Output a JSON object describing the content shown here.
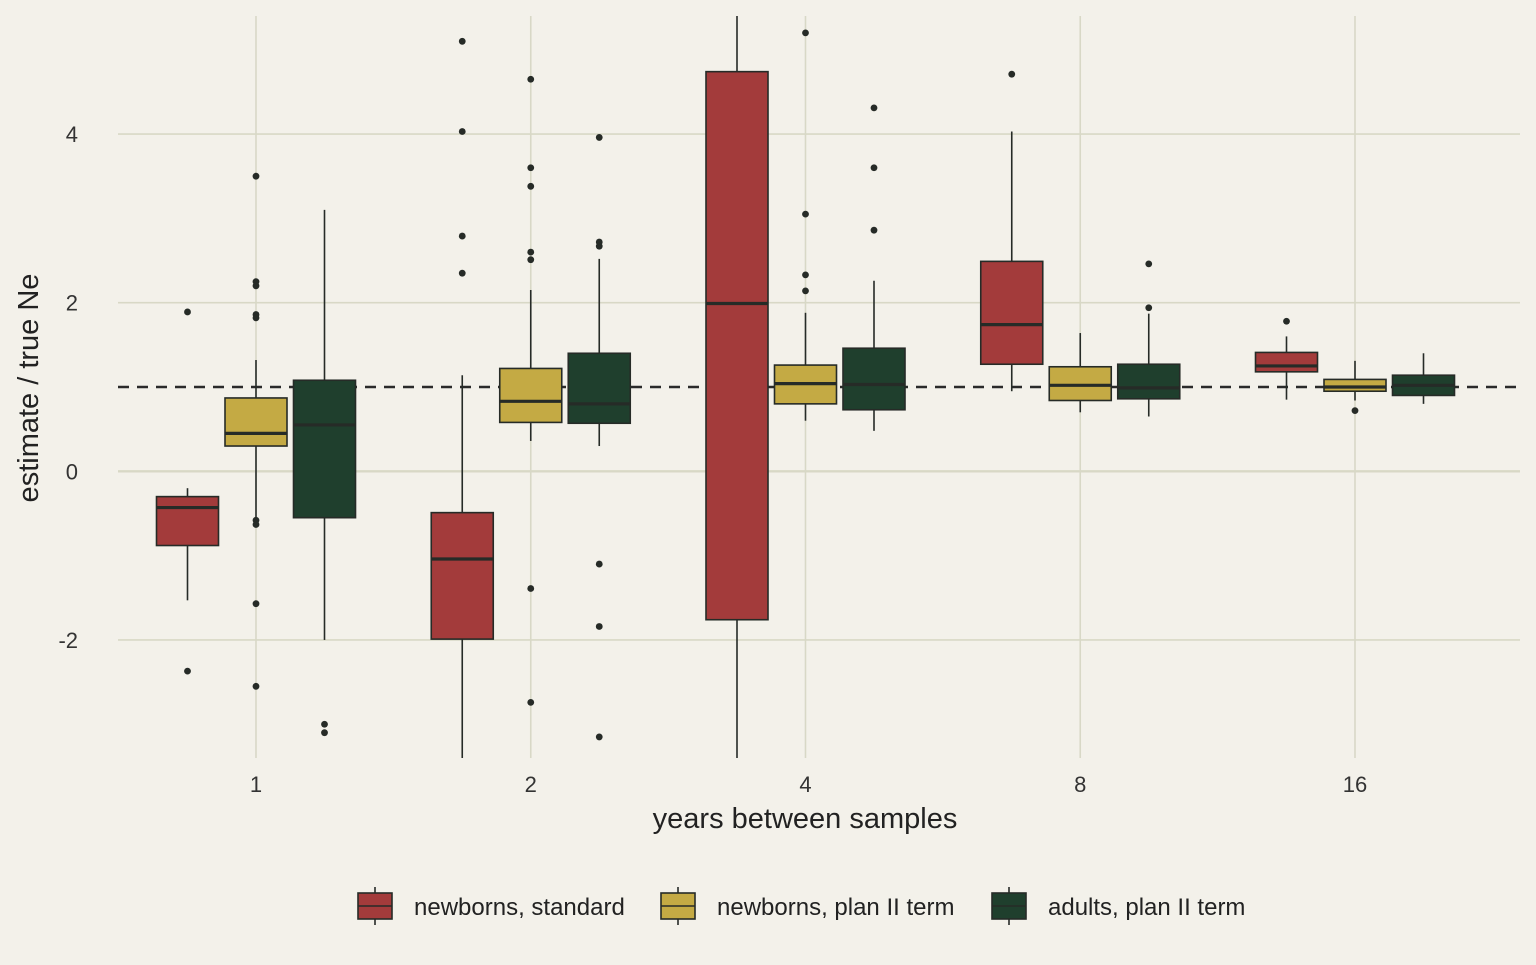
{
  "chart_data": {
    "type": "boxplot",
    "title": "",
    "xlabel": "years between samples",
    "ylabel": "estimate / true Ne",
    "categories": [
      "1",
      "2",
      "4",
      "8",
      "16"
    ],
    "ylim": [
      -3.4,
      5.4
    ],
    "yticks": [
      -2,
      0,
      2,
      4
    ],
    "ytick_labels": [
      "-2",
      "0",
      "2",
      "4"
    ],
    "reference_line": {
      "y": 1,
      "style": "dashed"
    },
    "grid": true,
    "legend_position": "bottom",
    "series": [
      {
        "name": "newborns, standard",
        "color": "#a33b3b",
        "boxes": [
          {
            "q1": -0.88,
            "median": -0.43,
            "q3": -0.3,
            "whisker_low": -1.53,
            "whisker_high": -0.2,
            "outliers": [
              1.89,
              -2.37
            ]
          },
          {
            "q1": -1.99,
            "median": -1.04,
            "q3": -0.49,
            "whisker_low": -3.4,
            "whisker_high": 1.14,
            "outliers": [
              5.1,
              4.03,
              2.79,
              2.35
            ]
          },
          {
            "q1": -1.76,
            "median": 1.99,
            "q3": 4.74,
            "whisker_low": -3.4,
            "whisker_high": 5.4,
            "outliers": []
          },
          {
            "q1": 1.27,
            "median": 1.74,
            "q3": 2.49,
            "whisker_low": 0.95,
            "whisker_high": 4.03,
            "outliers": [
              4.71
            ]
          },
          {
            "q1": 1.18,
            "median": 1.25,
            "q3": 1.41,
            "whisker_low": 0.85,
            "whisker_high": 1.6,
            "outliers": [
              1.78
            ]
          }
        ]
      },
      {
        "name": "newborns, plan II term",
        "color": "#c4aa44",
        "boxes": [
          {
            "q1": 0.3,
            "median": 0.45,
            "q3": 0.87,
            "whisker_low": -0.55,
            "whisker_high": 1.32,
            "outliers": [
              3.5,
              2.25,
              2.2,
              1.86,
              1.82,
              -0.58,
              -0.63,
              -1.57,
              -2.55
            ]
          },
          {
            "q1": 0.58,
            "median": 0.83,
            "q3": 1.22,
            "whisker_low": 0.36,
            "whisker_high": 2.15,
            "outliers": [
              4.65,
              3.6,
              3.38,
              2.6,
              2.51,
              -1.39,
              -2.74
            ]
          },
          {
            "q1": 0.8,
            "median": 1.04,
            "q3": 1.26,
            "whisker_low": 0.6,
            "whisker_high": 1.88,
            "outliers": [
              5.2,
              3.05,
              2.33,
              2.14
            ]
          },
          {
            "q1": 0.84,
            "median": 1.02,
            "q3": 1.24,
            "whisker_low": 0.7,
            "whisker_high": 1.64,
            "outliers": []
          },
          {
            "q1": 0.95,
            "median": 1.0,
            "q3": 1.09,
            "whisker_low": 0.84,
            "whisker_high": 1.31,
            "outliers": [
              0.72
            ]
          }
        ]
      },
      {
        "name": "adults, plan II term",
        "color": "#1f3f2d",
        "boxes": [
          {
            "q1": -0.55,
            "median": 0.55,
            "q3": 1.08,
            "whisker_low": -2.0,
            "whisker_high": 3.1,
            "outliers": [
              -3.0,
              -3.1
            ]
          },
          {
            "q1": 0.57,
            "median": 0.8,
            "q3": 1.4,
            "whisker_low": 0.3,
            "whisker_high": 2.52,
            "outliers": [
              3.96,
              2.72,
              2.67,
              -1.1,
              -1.84,
              -3.15
            ]
          },
          {
            "q1": 0.73,
            "median": 1.03,
            "q3": 1.46,
            "whisker_low": 0.48,
            "whisker_high": 2.26,
            "outliers": [
              4.31,
              3.6,
              2.86
            ]
          },
          {
            "q1": 0.86,
            "median": 0.99,
            "q3": 1.27,
            "whisker_low": 0.65,
            "whisker_high": 1.87,
            "outliers": [
              2.46,
              1.94
            ]
          },
          {
            "q1": 0.9,
            "median": 1.02,
            "q3": 1.14,
            "whisker_low": 0.8,
            "whisker_high": 1.4,
            "outliers": []
          }
        ]
      }
    ]
  }
}
